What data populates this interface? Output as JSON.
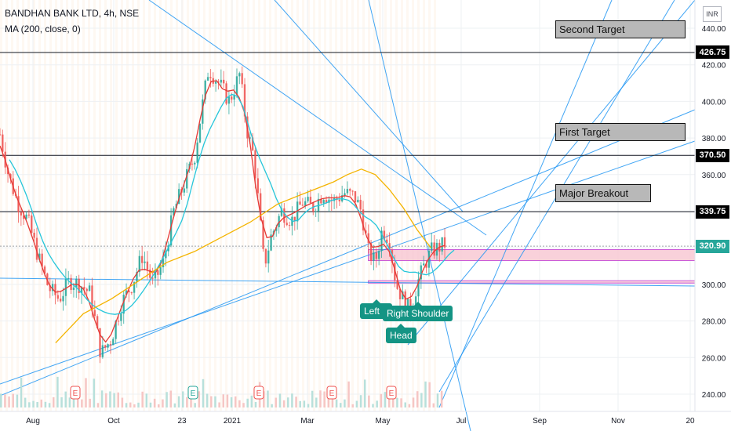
{
  "header": {
    "title": "BANDHAN BANK LTD, 4h, NSE",
    "indicator": "MA (200, close, 0)"
  },
  "currency_button": "INR",
  "annotations": [
    {
      "id": "second-target",
      "label": "Second Target"
    },
    {
      "id": "first-target",
      "label": "First Target"
    },
    {
      "id": "major-breakout",
      "label": "Major Breakout"
    }
  ],
  "pattern_labels": {
    "left_shoulder": "Left S",
    "right_shoulder": "Right Shoulder",
    "head": "Head"
  },
  "price_tags": [
    {
      "label": "426.75",
      "value": 426.75,
      "style": "black"
    },
    {
      "label": "370.50",
      "value": 370.5,
      "style": "black"
    },
    {
      "label": "339.75",
      "value": 339.75,
      "style": "black"
    },
    {
      "label": "320.90",
      "value": 320.9,
      "style": "green"
    }
  ],
  "colors": {
    "up": "#26a69a",
    "down": "#ef5350",
    "ma_fast": "#e53935",
    "ma_mid": "#26c6da",
    "ma200": "#f4b400",
    "trendline": "#2196f3",
    "zone_fill": "#f8c9d4",
    "zone_border": "#c03ad1"
  },
  "chart_data": {
    "type": "candlestick",
    "title": "BANDHAN BANK LTD, 4h, NSE",
    "indicators": [
      "MA (200, close, 0)"
    ],
    "y_axis": {
      "ticks": [
        240,
        260,
        280,
        300,
        320,
        340,
        360,
        380,
        400,
        420,
        440
      ],
      "tick_labels": [
        "240.00",
        "260.00",
        "280.00",
        "300.00",
        "320.00",
        "340.00",
        "360.00",
        "380.00",
        "400.00",
        "420.00",
        "440.00"
      ],
      "ylim": [
        234,
        446
      ]
    },
    "x_axis": {
      "tick_labels": [
        "Aug",
        "Oct",
        "23",
        "2021",
        "Mar",
        "May",
        "Jul",
        "Sep",
        "Nov",
        "20"
      ]
    },
    "price_path": [
      [
        0,
        382
      ],
      [
        0.012,
        360
      ],
      [
        0.025,
        345
      ],
      [
        0.04,
        335
      ],
      [
        0.055,
        315
      ],
      [
        0.07,
        298
      ],
      [
        0.085,
        292
      ],
      [
        0.1,
        302
      ],
      [
        0.115,
        300
      ],
      [
        0.13,
        295
      ],
      [
        0.145,
        262
      ],
      [
        0.16,
        270
      ],
      [
        0.175,
        290
      ],
      [
        0.19,
        300
      ],
      [
        0.205,
        316
      ],
      [
        0.22,
        300
      ],
      [
        0.235,
        312
      ],
      [
        0.25,
        340
      ],
      [
        0.265,
        355
      ],
      [
        0.28,
        370
      ],
      [
        0.29,
        395
      ],
      [
        0.3,
        418
      ],
      [
        0.315,
        410
      ],
      [
        0.33,
        400
      ],
      [
        0.345,
        415
      ],
      [
        0.355,
        385
      ],
      [
        0.365,
        370
      ],
      [
        0.37,
        352
      ],
      [
        0.38,
        310
      ],
      [
        0.39,
        326
      ],
      [
        0.405,
        340
      ],
      [
        0.42,
        335
      ],
      [
        0.435,
        345
      ],
      [
        0.45,
        342
      ],
      [
        0.465,
        350
      ],
      [
        0.48,
        345
      ],
      [
        0.495,
        350
      ],
      [
        0.51,
        348
      ],
      [
        0.52,
        340
      ],
      [
        0.53,
        318
      ],
      [
        0.54,
        312
      ],
      [
        0.55,
        330
      ],
      [
        0.56,
        325
      ],
      [
        0.57,
        300
      ],
      [
        0.58,
        292
      ],
      [
        0.59,
        285
      ],
      [
        0.6,
        300
      ],
      [
        0.61,
        310
      ],
      [
        0.62,
        318
      ],
      [
        0.63,
        320
      ],
      [
        0.64,
        322
      ]
    ],
    "ma200_path": [
      [
        0.08,
        268
      ],
      [
        0.12,
        284
      ],
      [
        0.16,
        292
      ],
      [
        0.2,
        302
      ],
      [
        0.24,
        312
      ],
      [
        0.28,
        318
      ],
      [
        0.32,
        326
      ],
      [
        0.36,
        334
      ],
      [
        0.4,
        344
      ],
      [
        0.44,
        350
      ],
      [
        0.48,
        356
      ],
      [
        0.5,
        360
      ],
      [
        0.52,
        363
      ],
      [
        0.54,
        360
      ],
      [
        0.56,
        352
      ],
      [
        0.58,
        342
      ],
      [
        0.6,
        330
      ],
      [
        0.62,
        320
      ]
    ],
    "levels": [
      {
        "label": "426.75",
        "value": 426.75
      },
      {
        "label": "370.50",
        "value": 370.5
      },
      {
        "label": "339.75",
        "value": 339.75
      },
      {
        "label": "320.90",
        "value": 320.9
      }
    ],
    "zones": [
      {
        "low": 314,
        "high": 317
      },
      {
        "low": 301,
        "high": 302
      }
    ],
    "event_markers": [
      "E",
      "E",
      "E",
      "E",
      "E"
    ]
  }
}
